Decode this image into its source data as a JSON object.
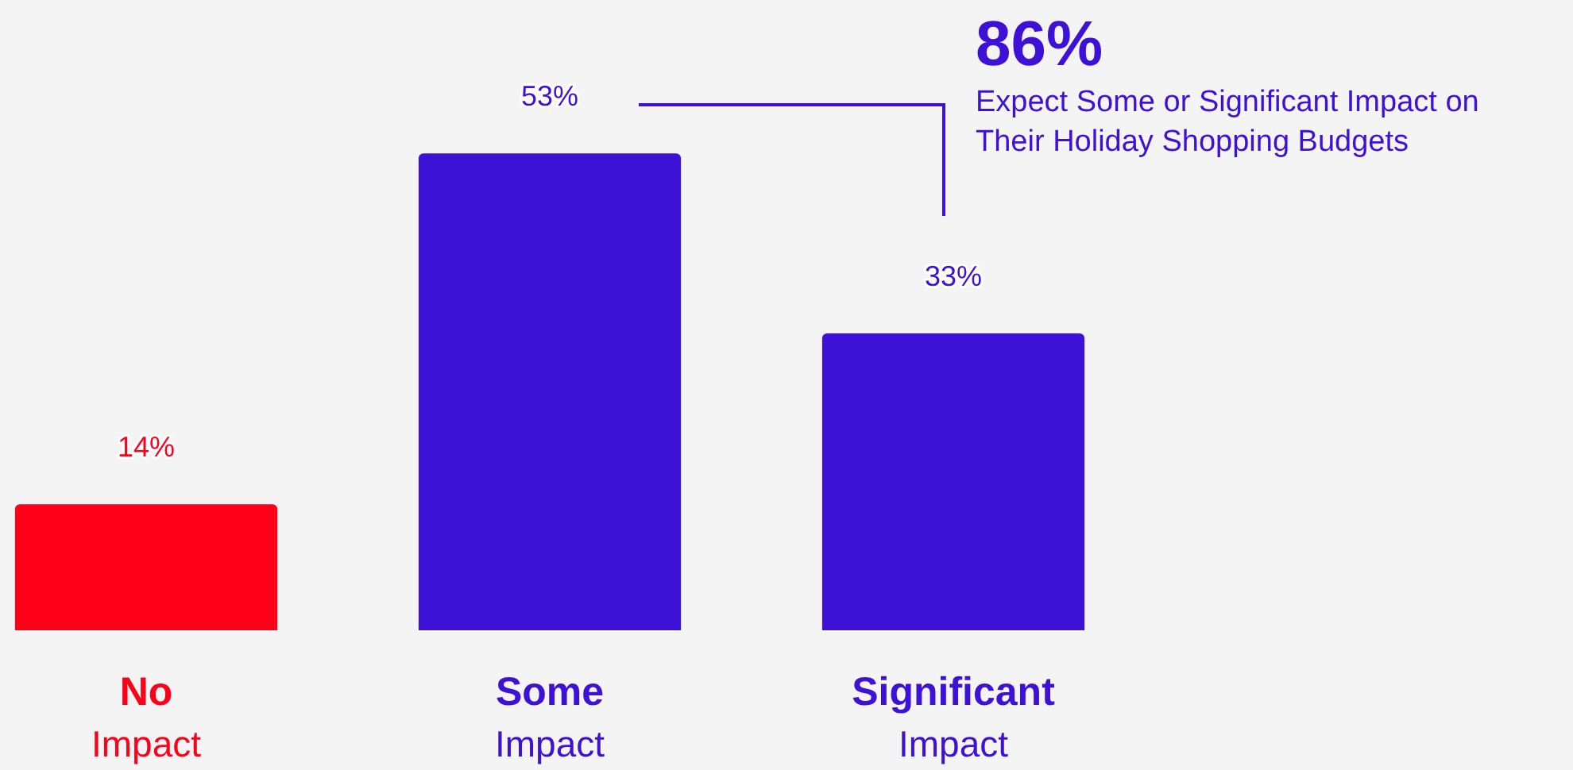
{
  "chart_data": {
    "type": "bar",
    "categories": [
      "No Impact",
      "Some Impact",
      "Significant Impact"
    ],
    "values": [
      14,
      53,
      33
    ],
    "colors": [
      "#ff0019",
      "#3d12d6",
      "#3d12d6"
    ],
    "value_labels": [
      "14%",
      "53%",
      "33%"
    ],
    "annotations": [
      "86%",
      "Expect Some or Significant Impact on Their Holiday Shopping Budgets"
    ],
    "legend": false
  }
}
